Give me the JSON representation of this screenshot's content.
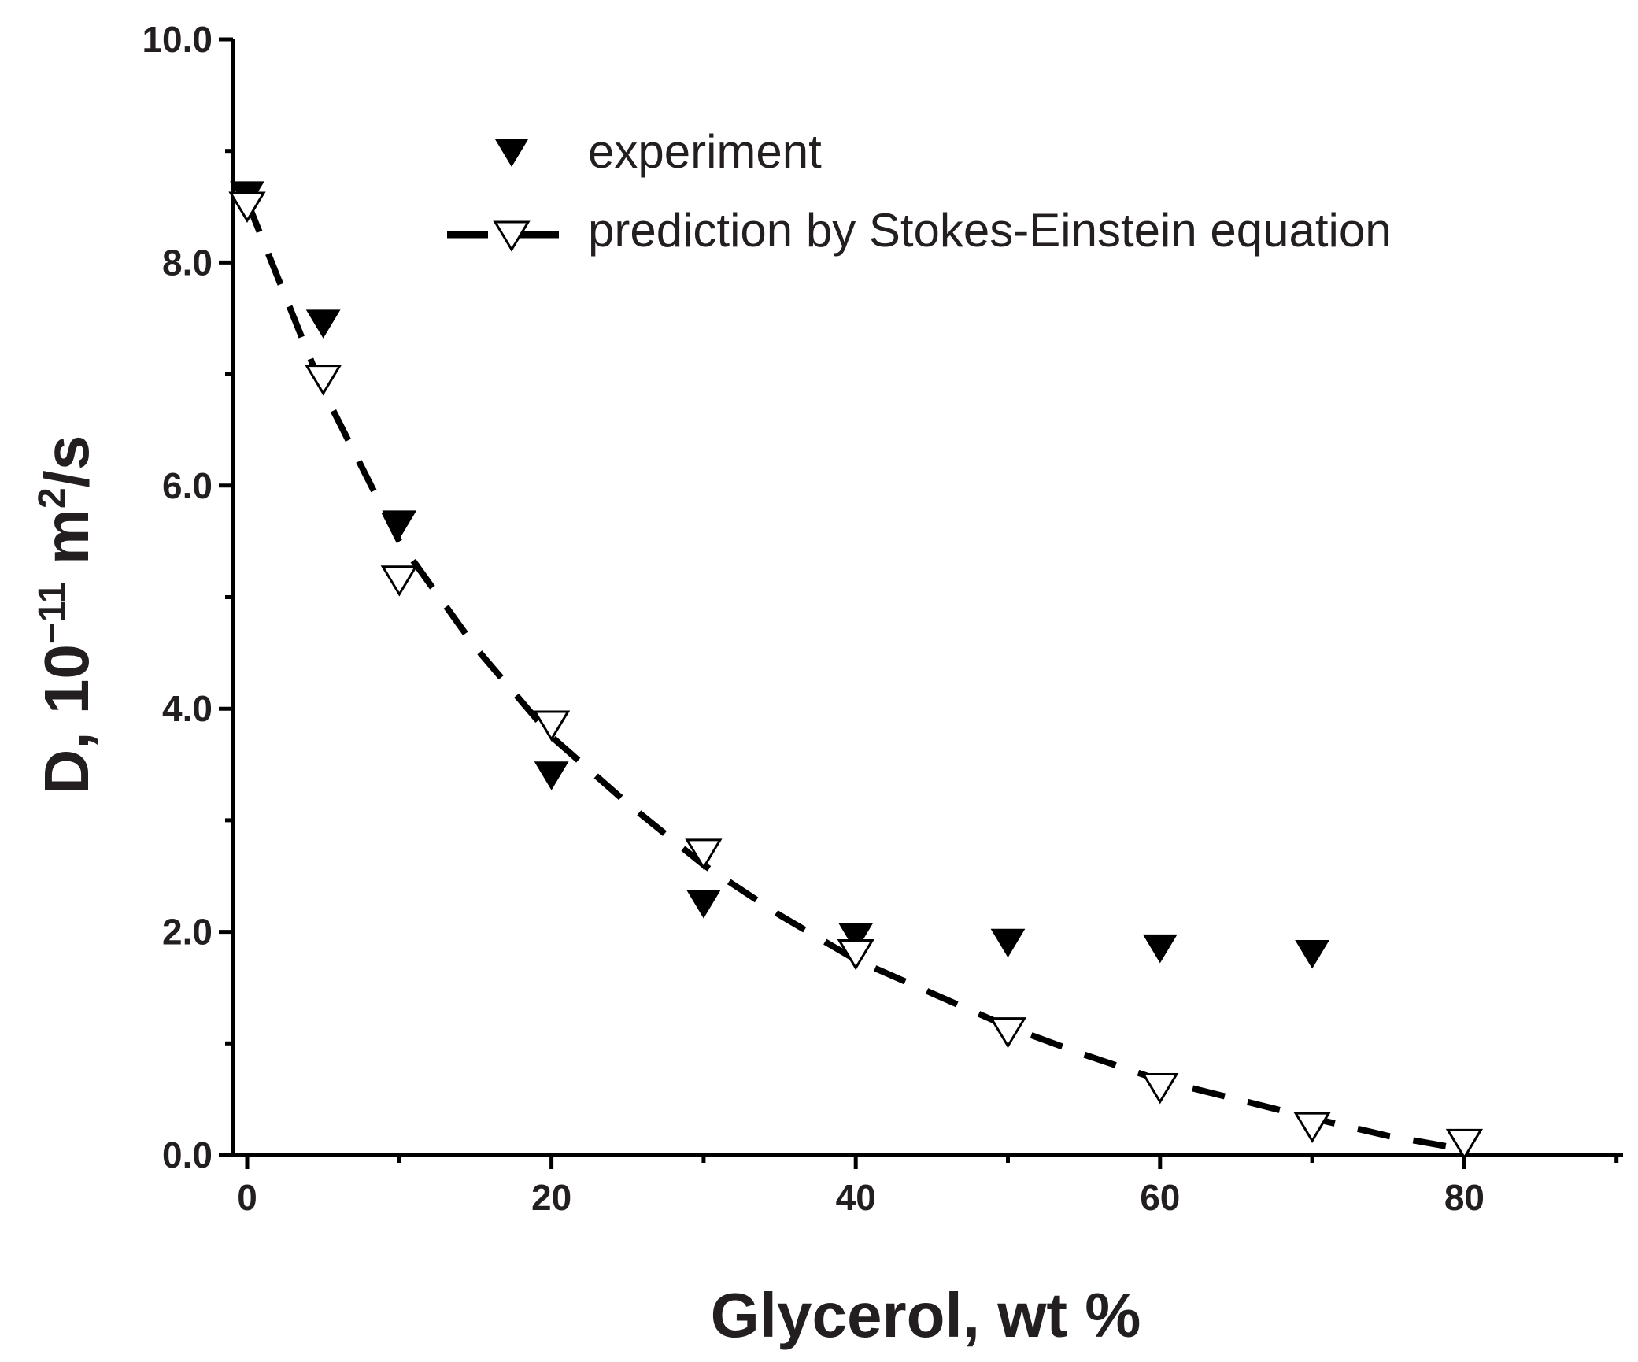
{
  "chart_data": {
    "type": "scatter",
    "title": "",
    "xlabel": "Glycerol, wt %",
    "ylabel_main": "D, 10",
    "ylabel_exp": "−11",
    "ylabel_unit": " m",
    "ylabel_unit_exp": "2",
    "ylabel_tail": "/s",
    "xlim": [
      -2,
      90
    ],
    "ylim": [
      0,
      10
    ],
    "x_ticks": [
      0,
      20,
      40,
      60,
      80
    ],
    "x_tick_labels": [
      "0",
      "20",
      "40",
      "60",
      "80"
    ],
    "x_minor_ticks": [
      10,
      30,
      50,
      70,
      90
    ],
    "y_ticks": [
      0,
      2,
      4,
      6,
      8,
      10
    ],
    "y_tick_labels": [
      "0.0",
      "2.0",
      "4.0",
      "6.0",
      "8.0",
      "10.0"
    ],
    "y_minor_ticks": [
      1,
      3,
      5,
      7,
      9
    ],
    "grid": false,
    "legend_position": "top-right",
    "series": [
      {
        "name": "experiment",
        "marker": "filled-down-triangle",
        "color": "#000000",
        "x": [
          0,
          5,
          10,
          20,
          30,
          40,
          50,
          60,
          70
        ],
        "y": [
          8.6,
          7.45,
          5.65,
          3.4,
          2.25,
          1.95,
          1.9,
          1.85,
          1.8
        ]
      },
      {
        "name": "prediction by Stokes-Einstein equation",
        "marker": "open-down-triangle",
        "line": "dashed",
        "color": "#000000",
        "x": [
          0,
          5,
          10,
          20,
          30,
          40,
          50,
          60,
          70,
          80
        ],
        "y": [
          8.5,
          6.95,
          5.15,
          3.85,
          2.7,
          1.8,
          1.1,
          0.6,
          0.25,
          0.1
        ],
        "fit_x": [
          0,
          5,
          10,
          15,
          20,
          25,
          30,
          35,
          40,
          45,
          50,
          55,
          60,
          65,
          70,
          75,
          80
        ],
        "fit_y": [
          8.55,
          6.85,
          5.5,
          4.55,
          3.75,
          3.15,
          2.6,
          2.15,
          1.75,
          1.45,
          1.15,
          0.9,
          0.67,
          0.5,
          0.33,
          0.17,
          0.05
        ]
      }
    ]
  }
}
